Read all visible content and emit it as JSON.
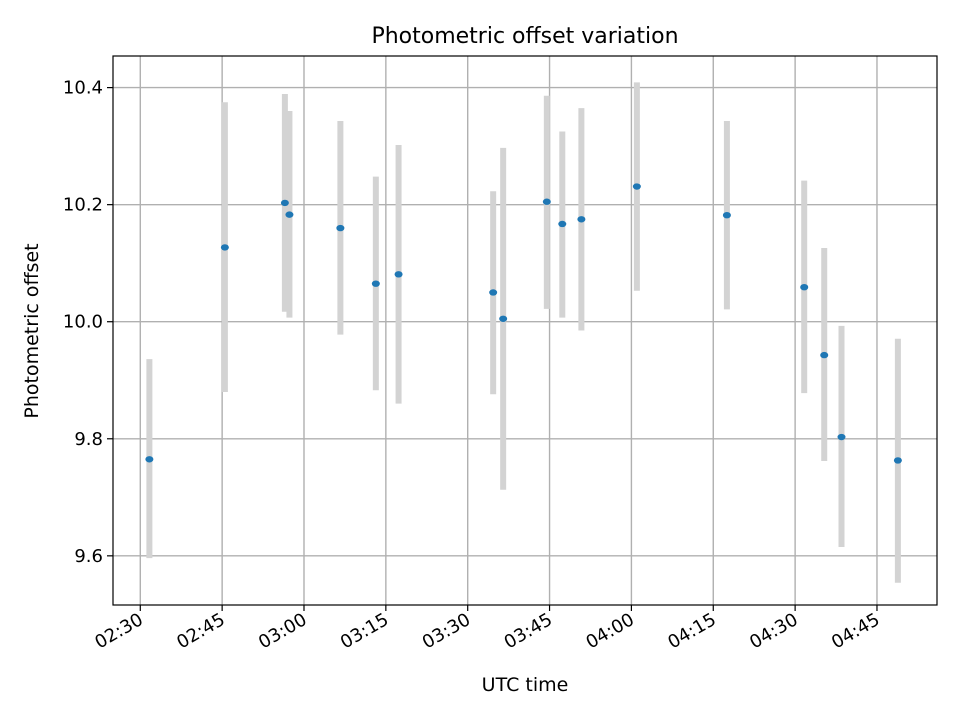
{
  "chart_data": {
    "type": "scatter",
    "title": "Photometric offset variation",
    "xlabel": "UTC time",
    "ylabel": "Photometric offset",
    "x_tick_labels": [
      "02:30",
      "02:45",
      "03:00",
      "03:15",
      "03:30",
      "03:45",
      "04:00",
      "04:15",
      "04:30",
      "04:45"
    ],
    "y_tick_labels": [
      "9.6",
      "9.8",
      "10.0",
      "10.2",
      "10.4"
    ],
    "y_ticks": [
      9.6,
      9.8,
      10.0,
      10.2,
      10.4
    ],
    "x_ticks": [
      "02:30",
      "02:45",
      "03:00",
      "03:15",
      "03:30",
      "03:45",
      "04:00",
      "04:15",
      "04:30",
      "04:45"
    ],
    "xlim": [
      "02:25",
      "04:56"
    ],
    "ylim": [
      9.516,
      10.454
    ],
    "grid": true,
    "colors": {
      "point": "#1f77b4",
      "errorbar": "#d3d3d3",
      "grid": "#b0b0b0"
    },
    "series": [
      {
        "points": [
          {
            "x": "02:31:40",
            "y": 9.765,
            "lo": 9.596,
            "hi": 9.936
          },
          {
            "x": "02:45:30",
            "y": 10.127,
            "lo": 9.88,
            "hi": 10.375
          },
          {
            "x": "02:56:30",
            "y": 10.203,
            "lo": 10.017,
            "hi": 10.389
          },
          {
            "x": "02:57:20",
            "y": 10.183,
            "lo": 10.007,
            "hi": 10.36
          },
          {
            "x": "03:06:40",
            "y": 10.16,
            "lo": 9.978,
            "hi": 10.343
          },
          {
            "x": "03:13:10",
            "y": 10.065,
            "lo": 9.883,
            "hi": 10.248
          },
          {
            "x": "03:17:20",
            "y": 10.081,
            "lo": 9.86,
            "hi": 10.302
          },
          {
            "x": "03:34:40",
            "y": 10.05,
            "lo": 9.876,
            "hi": 10.223
          },
          {
            "x": "03:36:30",
            "y": 10.005,
            "lo": 9.713,
            "hi": 10.297
          },
          {
            "x": "03:44:30",
            "y": 10.205,
            "lo": 10.022,
            "hi": 10.386
          },
          {
            "x": "03:47:20",
            "y": 10.167,
            "lo": 10.007,
            "hi": 10.325
          },
          {
            "x": "03:50:50",
            "y": 10.175,
            "lo": 9.985,
            "hi": 10.365
          },
          {
            "x": "04:01:00",
            "y": 10.231,
            "lo": 10.053,
            "hi": 10.409
          },
          {
            "x": "04:17:30",
            "y": 10.182,
            "lo": 10.021,
            "hi": 10.343
          },
          {
            "x": "04:31:40",
            "y": 10.059,
            "lo": 9.878,
            "hi": 10.241
          },
          {
            "x": "04:35:20",
            "y": 9.943,
            "lo": 9.762,
            "hi": 10.126
          },
          {
            "x": "04:38:30",
            "y": 9.803,
            "lo": 9.615,
            "hi": 9.993
          },
          {
            "x": "04:48:50",
            "y": 9.763,
            "lo": 9.554,
            "hi": 9.971
          }
        ]
      }
    ]
  }
}
